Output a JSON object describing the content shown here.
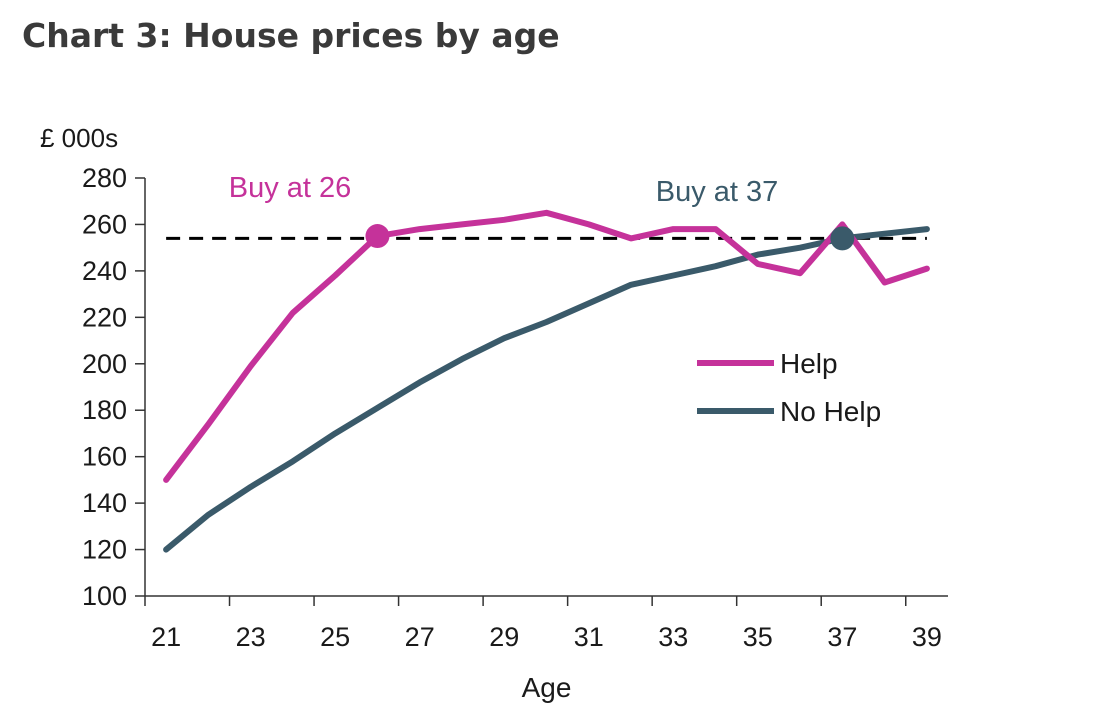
{
  "title": "Chart 3: House prices by age",
  "colors": {
    "help": "#c5329a",
    "no_help": "#3a5a6a",
    "threshold": "#000000",
    "axis": "#333333"
  },
  "chart_data": {
    "type": "line",
    "xlabel": "Age",
    "ylabel_unit": "£ 000s",
    "xlim": [
      20.5,
      39.5
    ],
    "ylim": [
      100,
      280
    ],
    "x_ticks": [
      21,
      23,
      25,
      27,
      29,
      31,
      33,
      35,
      37,
      39
    ],
    "y_ticks": [
      100,
      120,
      140,
      160,
      180,
      200,
      220,
      240,
      260,
      280
    ],
    "grid": false,
    "legend_position": "right-middle",
    "threshold": 254,
    "x": [
      21,
      22,
      23,
      24,
      25,
      26,
      27,
      28,
      29,
      30,
      31,
      32,
      33,
      34,
      35,
      36,
      37,
      38,
      39
    ],
    "series": [
      {
        "name": "Help",
        "values": [
          150,
          174,
          199,
          222,
          238,
          255,
          258,
          260,
          262,
          265,
          260,
          254,
          258,
          258,
          243,
          239,
          260,
          235,
          241
        ]
      },
      {
        "name": "No Help",
        "values": [
          120,
          135,
          147,
          158,
          170,
          181,
          192,
          202,
          211,
          218,
          226,
          234,
          238,
          242,
          247,
          250,
          254,
          256,
          258
        ]
      }
    ],
    "annotations": [
      {
        "text": "Buy at 26",
        "x": 26,
        "y": 255,
        "series": "Help"
      },
      {
        "text": "Buy at 37",
        "x": 37,
        "y": 254,
        "series": "No Help"
      }
    ]
  }
}
